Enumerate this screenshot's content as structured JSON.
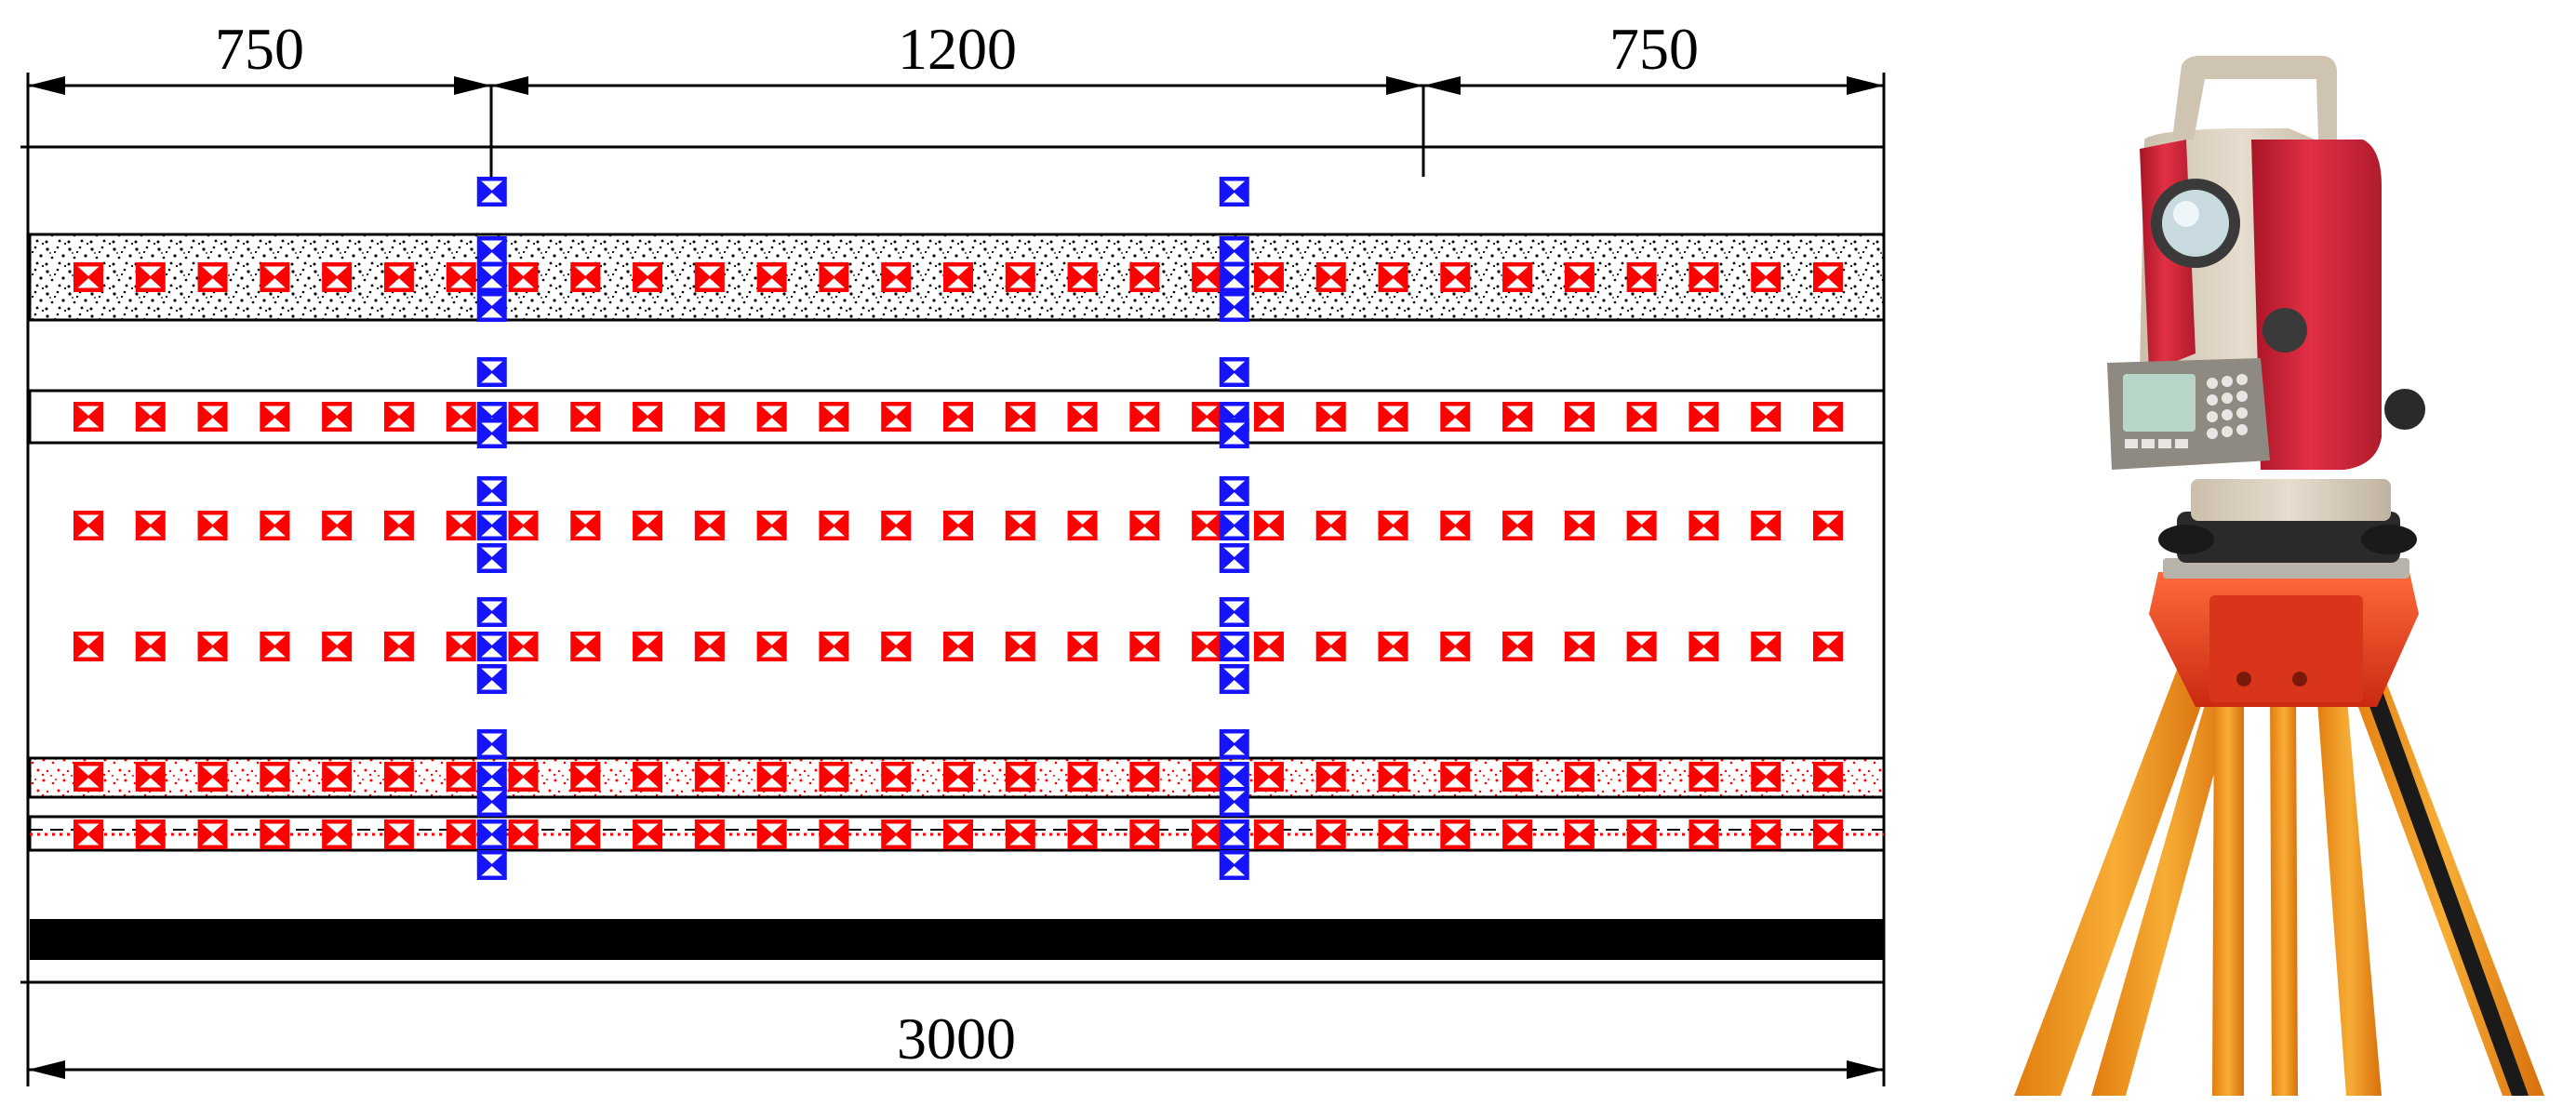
{
  "drawing": {
    "top_dimensions": [
      "750",
      "1200",
      "750"
    ],
    "bottom_dimension": "3000",
    "row_count": 7,
    "red_markers_per_row": 29,
    "survey_columns_count": 2,
    "survey_columns_position_mm": [
      750,
      1950
    ],
    "total_width_mm": 3000,
    "colors": {
      "red_marker": "#ff0000",
      "blue_marker": "#1414ff",
      "line": "#000000",
      "red_speckle": "#ff0000",
      "black_speckle": "#000000"
    }
  },
  "photo": {
    "subject": "total-station-on-tripod",
    "colors": {
      "body_red": "#d8283a",
      "body_beige": "#d9cfbf",
      "tripod_head": "#e8401e",
      "tripod_legs": "#f39a1c"
    }
  }
}
